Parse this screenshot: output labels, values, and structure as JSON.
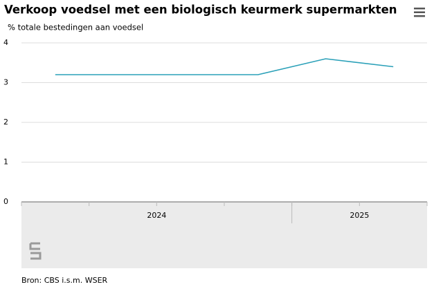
{
  "chart_data": {
    "type": "line",
    "title": "Verkoop voedsel met een biologisch keurmerk supermarkten",
    "subtitle": "% totale bestedingen aan voedsel",
    "categories": [
      null,
      null,
      null,
      null,
      null,
      null
    ],
    "x_groups": [
      {
        "label": "2024",
        "span": 4
      },
      {
        "label": "2025",
        "span": 2
      }
    ],
    "series": [
      {
        "color": "#2aa0b8",
        "values": [
          3.2,
          3.2,
          3.2,
          3.2,
          3.6,
          3.4
        ]
      }
    ],
    "ylim": [
      0,
      4
    ],
    "yticks": [
      0,
      1,
      2,
      3,
      4
    ],
    "grid": true,
    "source": "Bron: CBS i.s.m. WSER"
  }
}
